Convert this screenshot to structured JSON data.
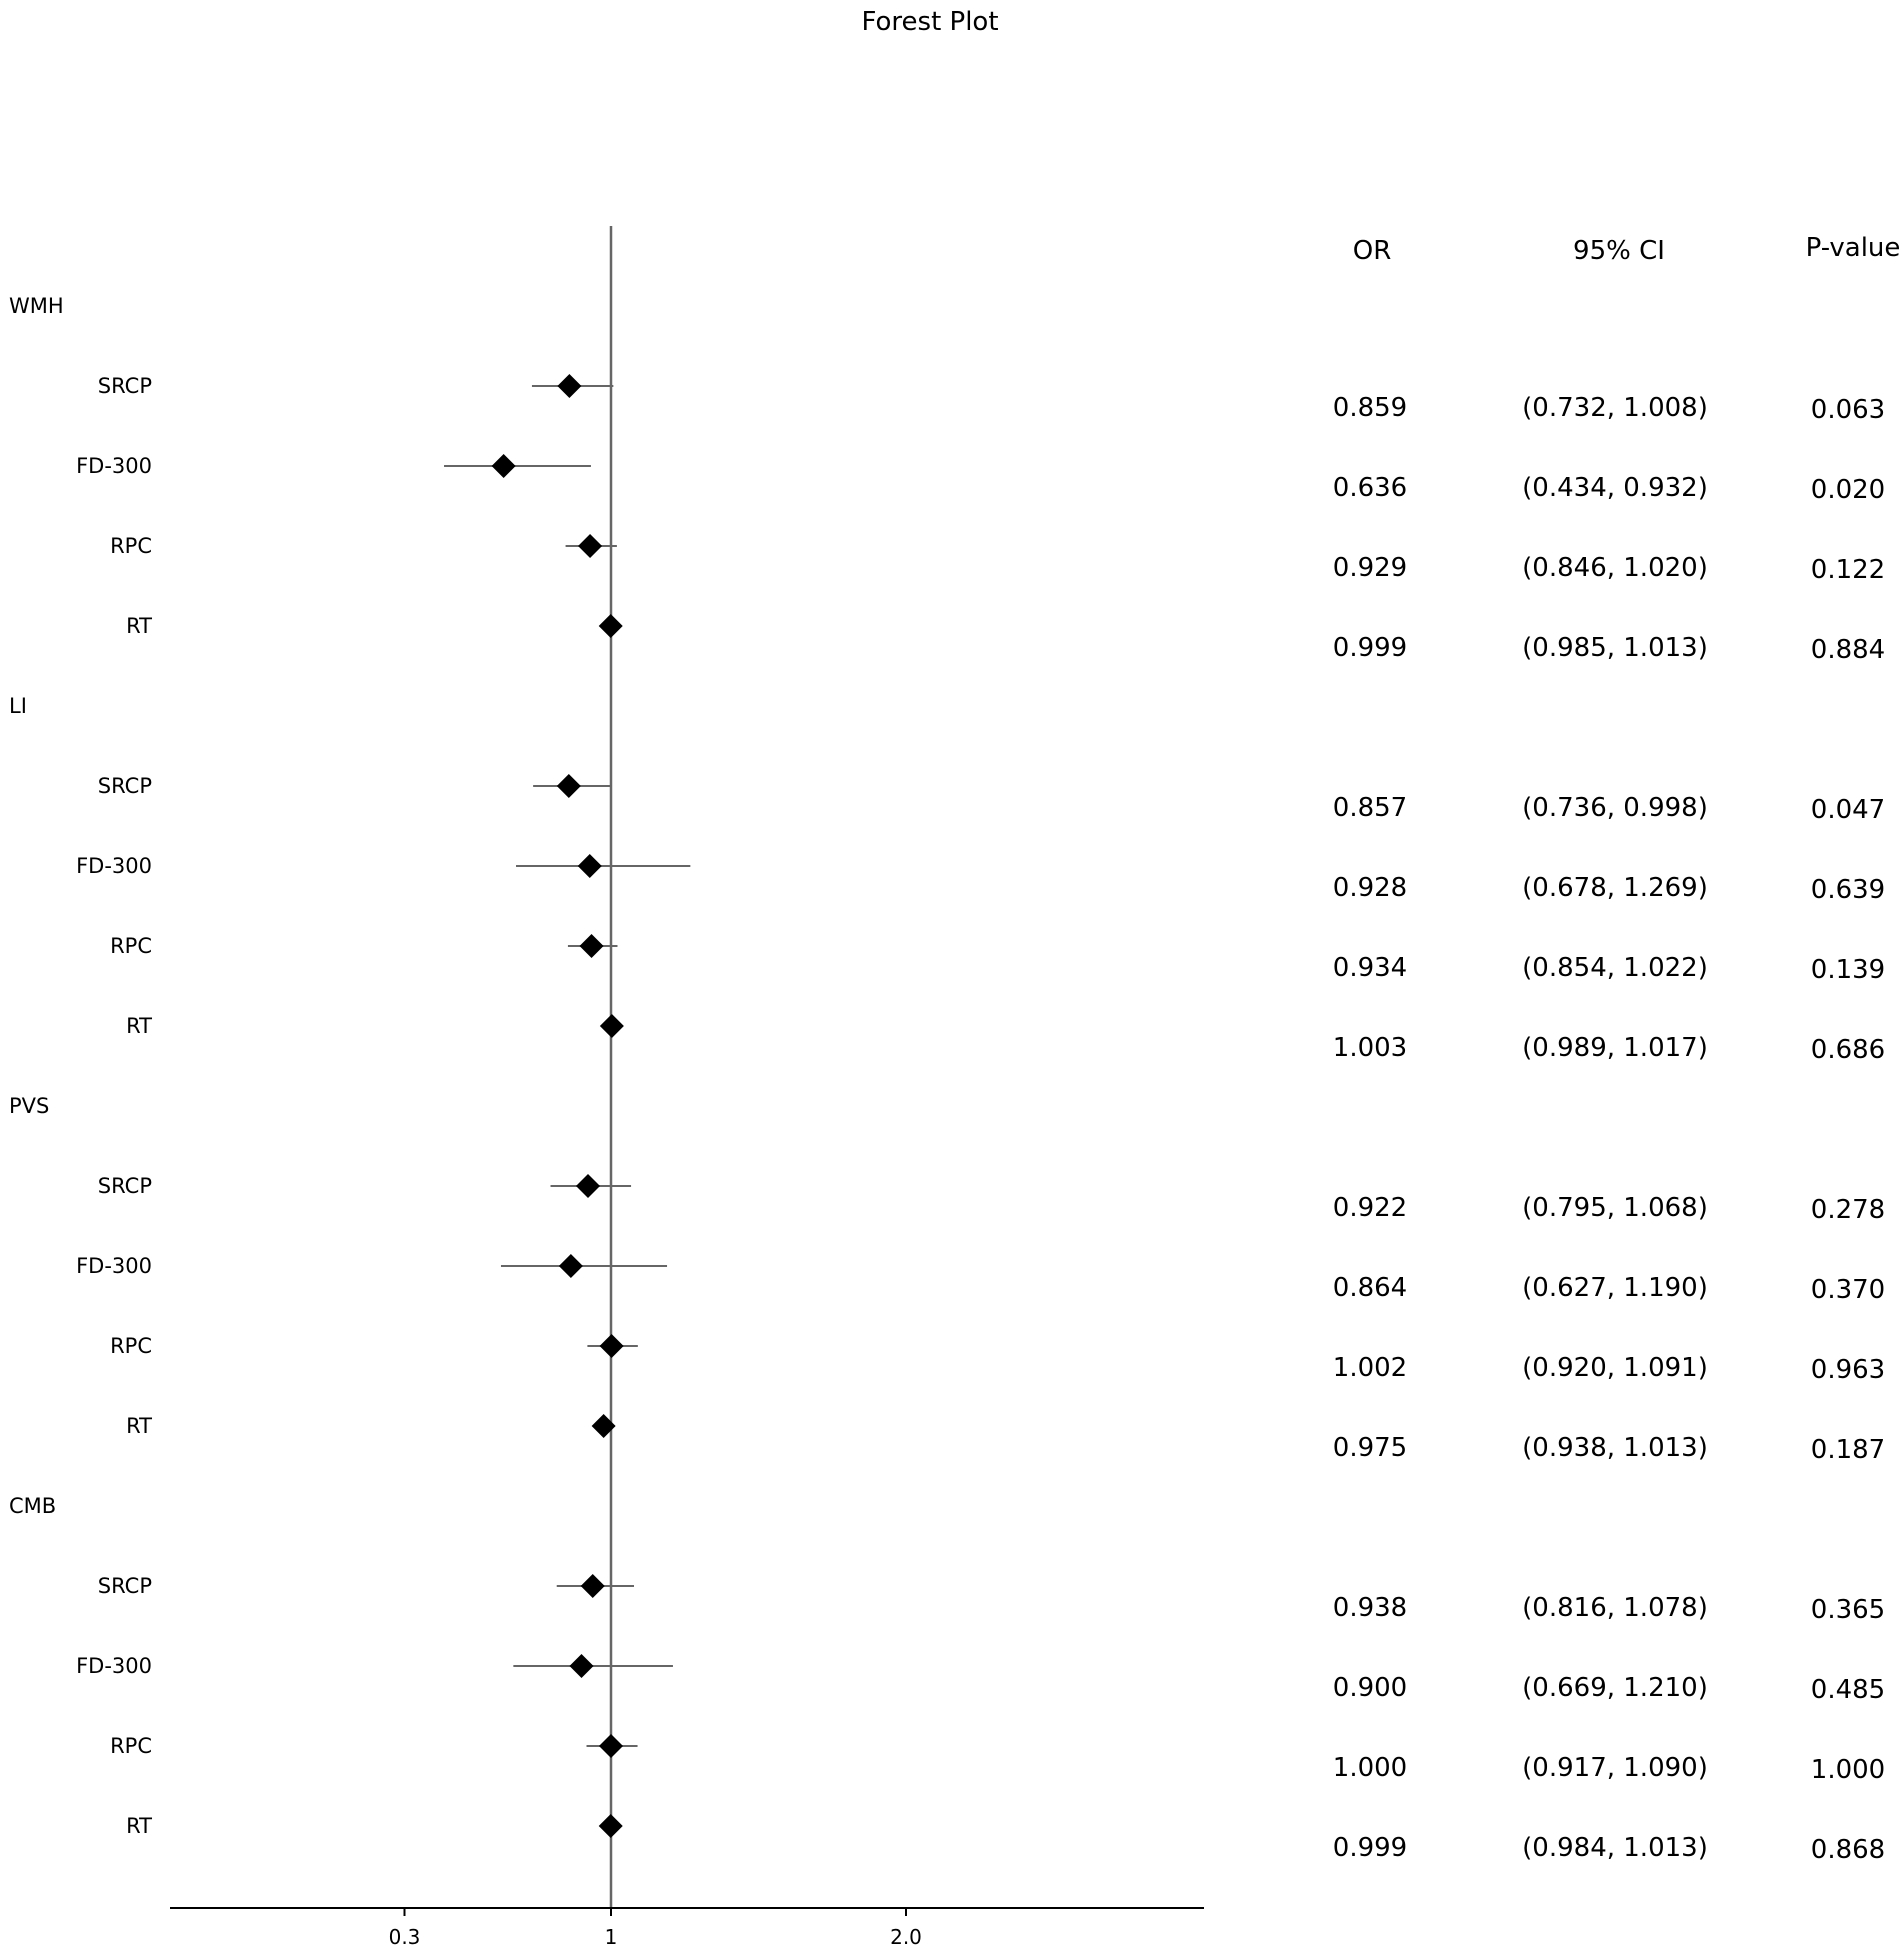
{
  "chart_data": {
    "type": "forest",
    "title": "Forest Plot",
    "xlabel": "",
    "x_ticks": [
      {
        "value": 0.3,
        "label": "0.3"
      },
      {
        "value": 1,
        "label": "1"
      },
      {
        "value": 2.0,
        "label": "2.0"
      }
    ],
    "xlim": [
      -0.2,
      3.3
    ],
    "reference_line": 1,
    "columns": {
      "or": "OR",
      "ci": "95% CI",
      "p": "P-value"
    },
    "groups": [
      {
        "name": "WMH",
        "rows": [
          {
            "label": "SRCP",
            "or": 0.859,
            "lo": 0.732,
            "hi": 1.008,
            "or_text": "0.859",
            "ci_text": "(0.732, 1.008)",
            "p_text": "0.063"
          },
          {
            "label": "FD-300",
            "or": 0.636,
            "lo": 0.434,
            "hi": 0.932,
            "or_text": "0.636",
            "ci_text": "(0.434, 0.932)",
            "p_text": "0.020"
          },
          {
            "label": "RPC",
            "or": 0.929,
            "lo": 0.846,
            "hi": 1.02,
            "or_text": "0.929",
            "ci_text": "(0.846, 1.020)",
            "p_text": "0.122"
          },
          {
            "label": "RT",
            "or": 0.999,
            "lo": 0.985,
            "hi": 1.013,
            "or_text": "0.999",
            "ci_text": "(0.985, 1.013)",
            "p_text": "0.884"
          }
        ]
      },
      {
        "name": "LI",
        "rows": [
          {
            "label": "SRCP",
            "or": 0.857,
            "lo": 0.736,
            "hi": 0.998,
            "or_text": "0.857",
            "ci_text": "(0.736, 0.998)",
            "p_text": "0.047"
          },
          {
            "label": "FD-300",
            "or": 0.928,
            "lo": 0.678,
            "hi": 1.269,
            "or_text": "0.928",
            "ci_text": "(0.678, 1.269)",
            "p_text": "0.639"
          },
          {
            "label": "RPC",
            "or": 0.934,
            "lo": 0.854,
            "hi": 1.022,
            "or_text": "0.934",
            "ci_text": "(0.854, 1.022)",
            "p_text": "0.139"
          },
          {
            "label": "RT",
            "or": 1.003,
            "lo": 0.989,
            "hi": 1.017,
            "or_text": "1.003",
            "ci_text": "(0.989, 1.017)",
            "p_text": "0.686"
          }
        ]
      },
      {
        "name": "PVS",
        "rows": [
          {
            "label": "SRCP",
            "or": 0.922,
            "lo": 0.795,
            "hi": 1.068,
            "or_text": "0.922",
            "ci_text": "(0.795, 1.068)",
            "p_text": "0.278"
          },
          {
            "label": "FD-300",
            "or": 0.864,
            "lo": 0.627,
            "hi": 1.19,
            "or_text": "0.864",
            "ci_text": "(0.627, 1.190)",
            "p_text": "0.370"
          },
          {
            "label": "RPC",
            "or": 1.002,
            "lo": 0.92,
            "hi": 1.091,
            "or_text": "1.002",
            "ci_text": "(0.920, 1.091)",
            "p_text": "0.963"
          },
          {
            "label": "RT",
            "or": 0.975,
            "lo": 0.938,
            "hi": 1.013,
            "or_text": "0.975",
            "ci_text": "(0.938, 1.013)",
            "p_text": "0.187"
          }
        ]
      },
      {
        "name": "CMB",
        "rows": [
          {
            "label": "SRCP",
            "or": 0.938,
            "lo": 0.816,
            "hi": 1.078,
            "or_text": "0.938",
            "ci_text": "(0.816, 1.078)",
            "p_text": "0.365"
          },
          {
            "label": "FD-300",
            "or": 0.9,
            "lo": 0.669,
            "hi": 1.21,
            "or_text": "0.900",
            "ci_text": "(0.669, 1.210)",
            "p_text": "0.485"
          },
          {
            "label": "RPC",
            "or": 1.0,
            "lo": 0.917,
            "hi": 1.09,
            "or_text": "1.000",
            "ci_text": "(0.917, 1.090)",
            "p_text": "1.000"
          },
          {
            "label": "RT",
            "or": 0.999,
            "lo": 0.984,
            "hi": 1.013,
            "or_text": "0.999",
            "ci_text": "(0.984, 1.013)",
            "p_text": "0.868"
          }
        ]
      }
    ],
    "marker_color": "#000000",
    "line_color": "#666666"
  }
}
